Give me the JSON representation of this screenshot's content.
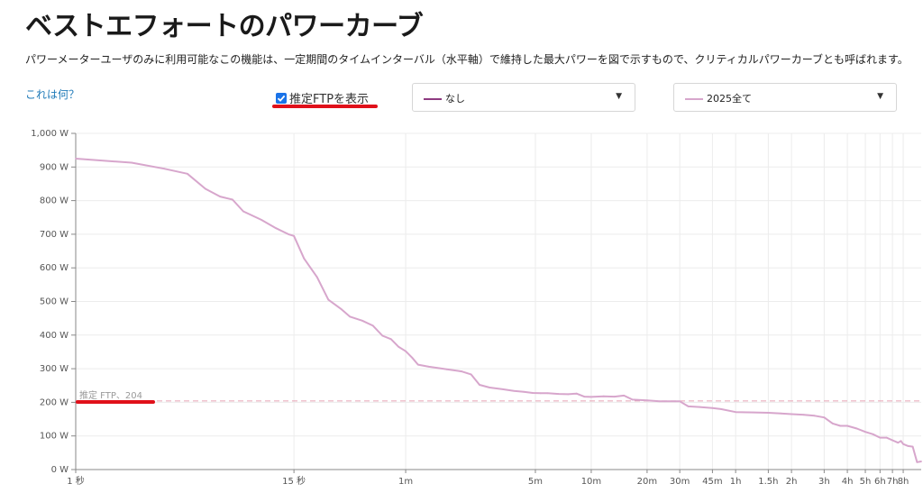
{
  "page": {
    "title": "ベストエフォートのパワーカーブ",
    "description": "パワーメーターユーザのみに利用可能なこの機能は、一定期間のタイムインターバル（水平軸）で維持した最大パワーを図で示すもので、クリティカルパワーカーブとも呼ばれます。",
    "help_link": "これは何？"
  },
  "controls": {
    "ftp_checkbox_label": "推定FTPを表示",
    "ftp_checkbox_checked": true,
    "compare_select_value": "なし",
    "compare_swatch_color": "#8e3a80",
    "period_select_value": "2025全て",
    "period_swatch_color": "#d7a6cc",
    "caret_icon": "caret-down-icon"
  },
  "chart_data": {
    "type": "line",
    "x_scale": "log",
    "y_unit": "W",
    "ylim": [
      0,
      1000
    ],
    "y_ticks": [
      0,
      100,
      200,
      300,
      400,
      500,
      600,
      700,
      800,
      900,
      1000
    ],
    "y_tick_labels": [
      "0 W",
      "100 W",
      "200 W",
      "300 W",
      "400 W",
      "500 W",
      "600 W",
      "700 W",
      "800 W",
      "900 W",
      "1,000 W"
    ],
    "x_ticks": [
      1,
      15,
      60,
      300,
      600,
      1200,
      1800,
      2700,
      3600,
      5400,
      7200,
      10800,
      14400,
      18000,
      21600,
      25200,
      28800
    ],
    "x_tick_labels": [
      "1 秒",
      "15 秒",
      "1m",
      "5m",
      "10m",
      "20m",
      "30m",
      "45m",
      "1h",
      "1.5h",
      "2h",
      "3h",
      "4h",
      "5h",
      "6h",
      "7h",
      "8h"
    ],
    "grid": true,
    "ftp": {
      "value": 204,
      "label": "推定 FTP、204"
    },
    "series": [
      {
        "name": "2025全て",
        "color": "#d7a6cc",
        "x": [
          1,
          2,
          3,
          4,
          5,
          6,
          7,
          8,
          10,
          12,
          14,
          15,
          17,
          20,
          23,
          27,
          30,
          35,
          40,
          45,
          50,
          55,
          60,
          65,
          70,
          80,
          90,
          100,
          120,
          135,
          150,
          170,
          200,
          230,
          260,
          290,
          320,
          350,
          400,
          450,
          500,
          550,
          600,
          700,
          800,
          900,
          1000,
          1200,
          1400,
          1500,
          1700,
          1800,
          2000,
          2300,
          2700,
          3000,
          3600,
          4500,
          5400,
          6300,
          7200,
          8400,
          9600,
          10800,
          12000,
          13200,
          14400,
          16200,
          18000,
          19800,
          21600,
          23400,
          25200,
          27000,
          28000,
          28800,
          30600,
          32400,
          34200,
          36000
        ],
        "y": [
          925,
          913,
          895,
          880,
          835,
          812,
          803,
          768,
          743,
          718,
          700,
          695,
          628,
          572,
          505,
          477,
          455,
          443,
          428,
          398,
          388,
          365,
          352,
          333,
          312,
          306,
          302,
          298,
          292,
          283,
          252,
          244,
          239,
          234,
          231,
          228,
          227,
          227,
          225,
          224,
          226,
          217,
          216,
          218,
          217,
          220,
          208,
          206,
          203,
          203,
          203,
          203,
          188,
          186,
          183,
          180,
          171,
          170,
          169,
          167,
          165,
          163,
          160,
          155,
          137,
          130,
          130,
          122,
          112,
          105,
          95,
          95,
          87,
          80,
          85,
          76,
          70,
          68,
          22,
          24
        ]
      }
    ]
  }
}
